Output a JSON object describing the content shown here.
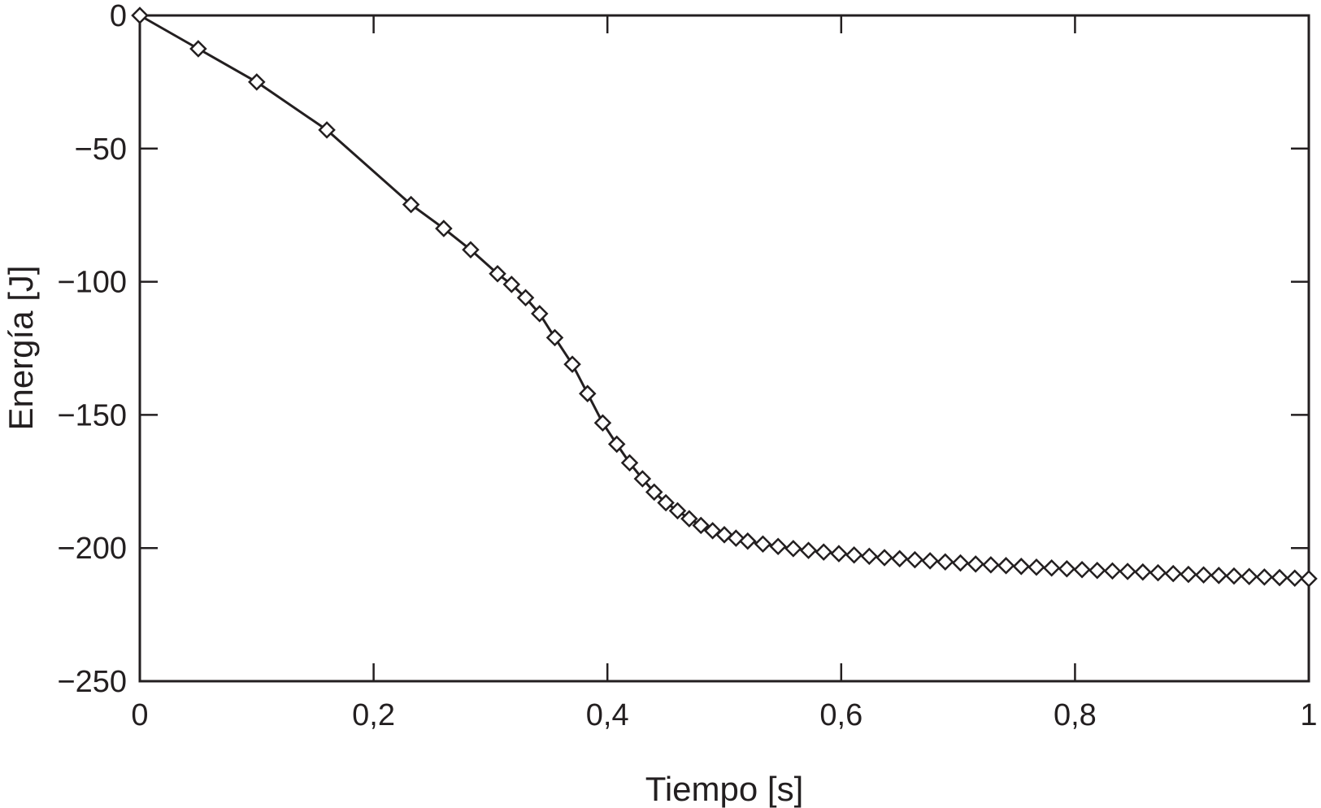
{
  "chart_data": {
    "type": "line",
    "xlabel": "Tiempo [s]",
    "ylabel": "Energía [J]",
    "xlim": [
      0,
      1
    ],
    "ylim": [
      -250,
      0
    ],
    "xticks": [
      0,
      0.2,
      0.4,
      0.6,
      0.8,
      1
    ],
    "xtick_labels": [
      "0",
      "0,2",
      "0,4",
      "0,6",
      "0,8",
      "1"
    ],
    "yticks": [
      0,
      -50,
      -100,
      -150,
      -200,
      -250
    ],
    "ytick_labels": [
      "0",
      "−50",
      "−100",
      "−150",
      "−200",
      "−250"
    ],
    "grid": false,
    "marker": "diamond",
    "color": "#231f20",
    "series": [
      {
        "x": [
          0,
          0.05,
          0.1,
          0.16,
          0.232,
          0.26,
          0.283,
          0.306,
          0.318,
          0.33,
          0.342,
          0.355,
          0.37,
          0.383,
          0.396,
          0.408,
          0.419,
          0.43,
          0.44,
          0.45,
          0.46,
          0.47,
          0.48,
          0.49,
          0.5,
          0.51,
          0.52,
          0.533,
          0.546,
          0.559,
          0.572,
          0.585,
          0.598,
          0.611,
          0.624,
          0.637,
          0.65,
          0.663,
          0.676,
          0.689,
          0.702,
          0.715,
          0.728,
          0.741,
          0.754,
          0.767,
          0.78,
          0.793,
          0.806,
          0.819,
          0.832,
          0.845,
          0.858,
          0.871,
          0.884,
          0.897,
          0.91,
          0.923,
          0.936,
          0.949,
          0.962,
          0.975,
          0.988,
          1.0
        ],
        "y": [
          0,
          -12.5,
          -25,
          -43,
          -71,
          -80,
          -88,
          -97,
          -101,
          -106,
          -112,
          -121,
          -131,
          -142,
          -153,
          -161,
          -168,
          -174,
          -179,
          -183,
          -186,
          -189,
          -191.5,
          -193.5,
          -195,
          -196.3,
          -197.4,
          -198.5,
          -199.4,
          -200.2,
          -200.9,
          -201.5,
          -202.1,
          -202.6,
          -203.1,
          -203.6,
          -204.0,
          -204.4,
          -204.8,
          -205.2,
          -205.6,
          -206.0,
          -206.3,
          -206.6,
          -206.9,
          -207.2,
          -207.5,
          -207.8,
          -208.1,
          -208.4,
          -208.6,
          -208.8,
          -209.0,
          -209.3,
          -209.6,
          -209.9,
          -210.1,
          -210.3,
          -210.5,
          -210.7,
          -210.9,
          -211.1,
          -211.3,
          -211.5
        ]
      }
    ]
  }
}
